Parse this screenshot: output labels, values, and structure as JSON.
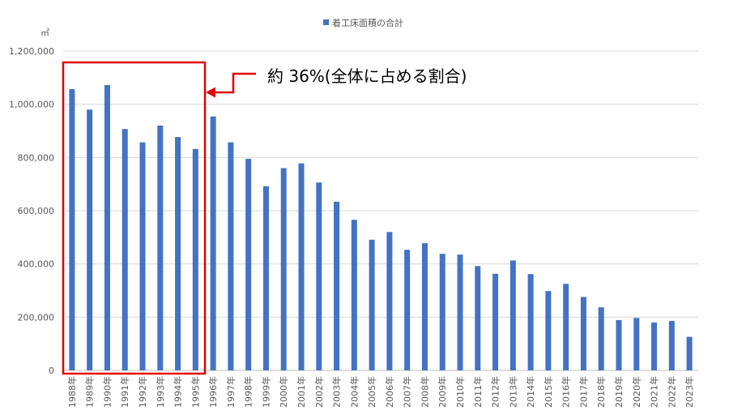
{
  "chart_data": {
    "type": "bar",
    "legend": [
      "着工床面積の合計"
    ],
    "legend_position": "top-center",
    "unit_label": "㎡",
    "ylim": [
      0,
      1200000
    ],
    "yticks": [
      0,
      200000,
      400000,
      600000,
      800000,
      1000000,
      1200000
    ],
    "ytick_labels": [
      "0",
      "200,000",
      "400,000",
      "600,000",
      "800,000",
      "1,000,000",
      "1,200,000"
    ],
    "grid": true,
    "categories": [
      "1988年",
      "1989年",
      "1990年",
      "1991年",
      "1992年",
      "1993年",
      "1994年",
      "1995年",
      "1996年",
      "1997年",
      "1998年",
      "1999年",
      "2000年",
      "2001年",
      "2002年",
      "2003年",
      "2004年",
      "2005年",
      "2006年",
      "2007年",
      "2008年",
      "2009年",
      "2010年",
      "2011年",
      "2012年",
      "2013年",
      "2014年",
      "2015年",
      "2016年",
      "2017年",
      "2018年",
      "2019年",
      "2020年",
      "2021年",
      "2022年",
      "2023年"
    ],
    "series": [
      {
        "name": "着工床面積の合計",
        "color": "#4472C4",
        "values": [
          1057000,
          980000,
          1072000,
          907000,
          857000,
          920000,
          877000,
          832000,
          954000,
          857000,
          795000,
          692000,
          760000,
          778000,
          706000,
          634000,
          566000,
          491000,
          520000,
          453000,
          478000,
          438000,
          435000,
          392000,
          363000,
          413000,
          362000,
          298000,
          325000,
          276000,
          237000,
          189000,
          197000,
          180000,
          186000,
          126000
        ]
      }
    ],
    "highlight": {
      "from_category": "1988年",
      "to_category": "1995年",
      "color": "#E00000",
      "annotation": "約 36%(全体に占める割合)"
    }
  }
}
